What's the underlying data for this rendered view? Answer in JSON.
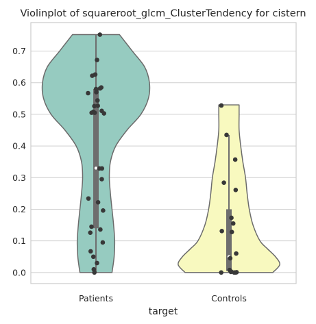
{
  "chart_data": {
    "type": "violin",
    "title": "Violinplot of squareroot_glcm_ClusterTendency for cistern",
    "xlabel": "target",
    "ylabel": "",
    "categories": [
      "Patients",
      "Controls"
    ],
    "ylim": [
      -0.035,
      0.79
    ],
    "yticks": [
      0.0,
      0.1,
      0.2,
      0.3,
      0.4,
      0.5,
      0.6,
      0.7
    ],
    "ytick_labels": [
      "0.0",
      "0.1",
      "0.2",
      "0.3",
      "0.4",
      "0.5",
      "0.6",
      "0.7"
    ],
    "grid": "horizontal",
    "colors": {
      "Patients": "#96cbc0",
      "Controls": "#f8f9bf",
      "outline": "#6b6b6b",
      "box": "#6e6e6e",
      "points": "#383838",
      "grid": "#cfcfcf",
      "frame": "#cccccc"
    },
    "violins": [
      {
        "category": "Patients",
        "box": {
          "whisker_low": 0.0,
          "q1": 0.14,
          "median": 0.33,
          "q3": 0.58,
          "whisker_high": 0.752
        },
        "density_profile": [
          [
            0.0,
            0.3
          ],
          [
            0.05,
            0.34
          ],
          [
            0.1,
            0.35
          ],
          [
            0.15,
            0.33
          ],
          [
            0.2,
            0.3
          ],
          [
            0.25,
            0.27
          ],
          [
            0.3,
            0.25
          ],
          [
            0.35,
            0.27
          ],
          [
            0.4,
            0.37
          ],
          [
            0.45,
            0.58
          ],
          [
            0.5,
            0.84
          ],
          [
            0.55,
            0.98
          ],
          [
            0.6,
            1.0
          ],
          [
            0.65,
            0.91
          ],
          [
            0.7,
            0.68
          ],
          [
            0.752,
            0.44
          ]
        ],
        "points": [
          0.752,
          0.672,
          0.626,
          0.622,
          0.585,
          0.582,
          0.58,
          0.579,
          0.57,
          0.567,
          0.544,
          0.527,
          0.526,
          0.511,
          0.508,
          0.505,
          0.505,
          0.503,
          0.329,
          0.329,
          0.295,
          0.234,
          0.222,
          0.196,
          0.145,
          0.136,
          0.126,
          0.095,
          0.067,
          0.05,
          0.03,
          0.01,
          0.0
        ]
      },
      {
        "category": "Controls",
        "box": {
          "whisker_low": 0.0,
          "q1": 0.005,
          "median": 0.05,
          "q3": 0.2,
          "whisker_high": 0.435
        },
        "density_profile": [
          [
            0.0,
            0.82
          ],
          [
            0.025,
            0.95
          ],
          [
            0.05,
            0.87
          ],
          [
            0.075,
            0.72
          ],
          [
            0.1,
            0.58
          ],
          [
            0.15,
            0.45
          ],
          [
            0.2,
            0.38
          ],
          [
            0.25,
            0.34
          ],
          [
            0.3,
            0.31
          ],
          [
            0.35,
            0.26
          ],
          [
            0.4,
            0.22
          ],
          [
            0.45,
            0.19
          ],
          [
            0.5,
            0.19
          ],
          [
            0.53,
            0.19
          ]
        ],
        "points": [
          0.528,
          0.435,
          0.357,
          0.284,
          0.261,
          0.173,
          0.155,
          0.131,
          0.128,
          0.06,
          0.045,
          0.008,
          0.003,
          0.002,
          0.001,
          0.0,
          0.0,
          0.0
        ]
      }
    ]
  }
}
